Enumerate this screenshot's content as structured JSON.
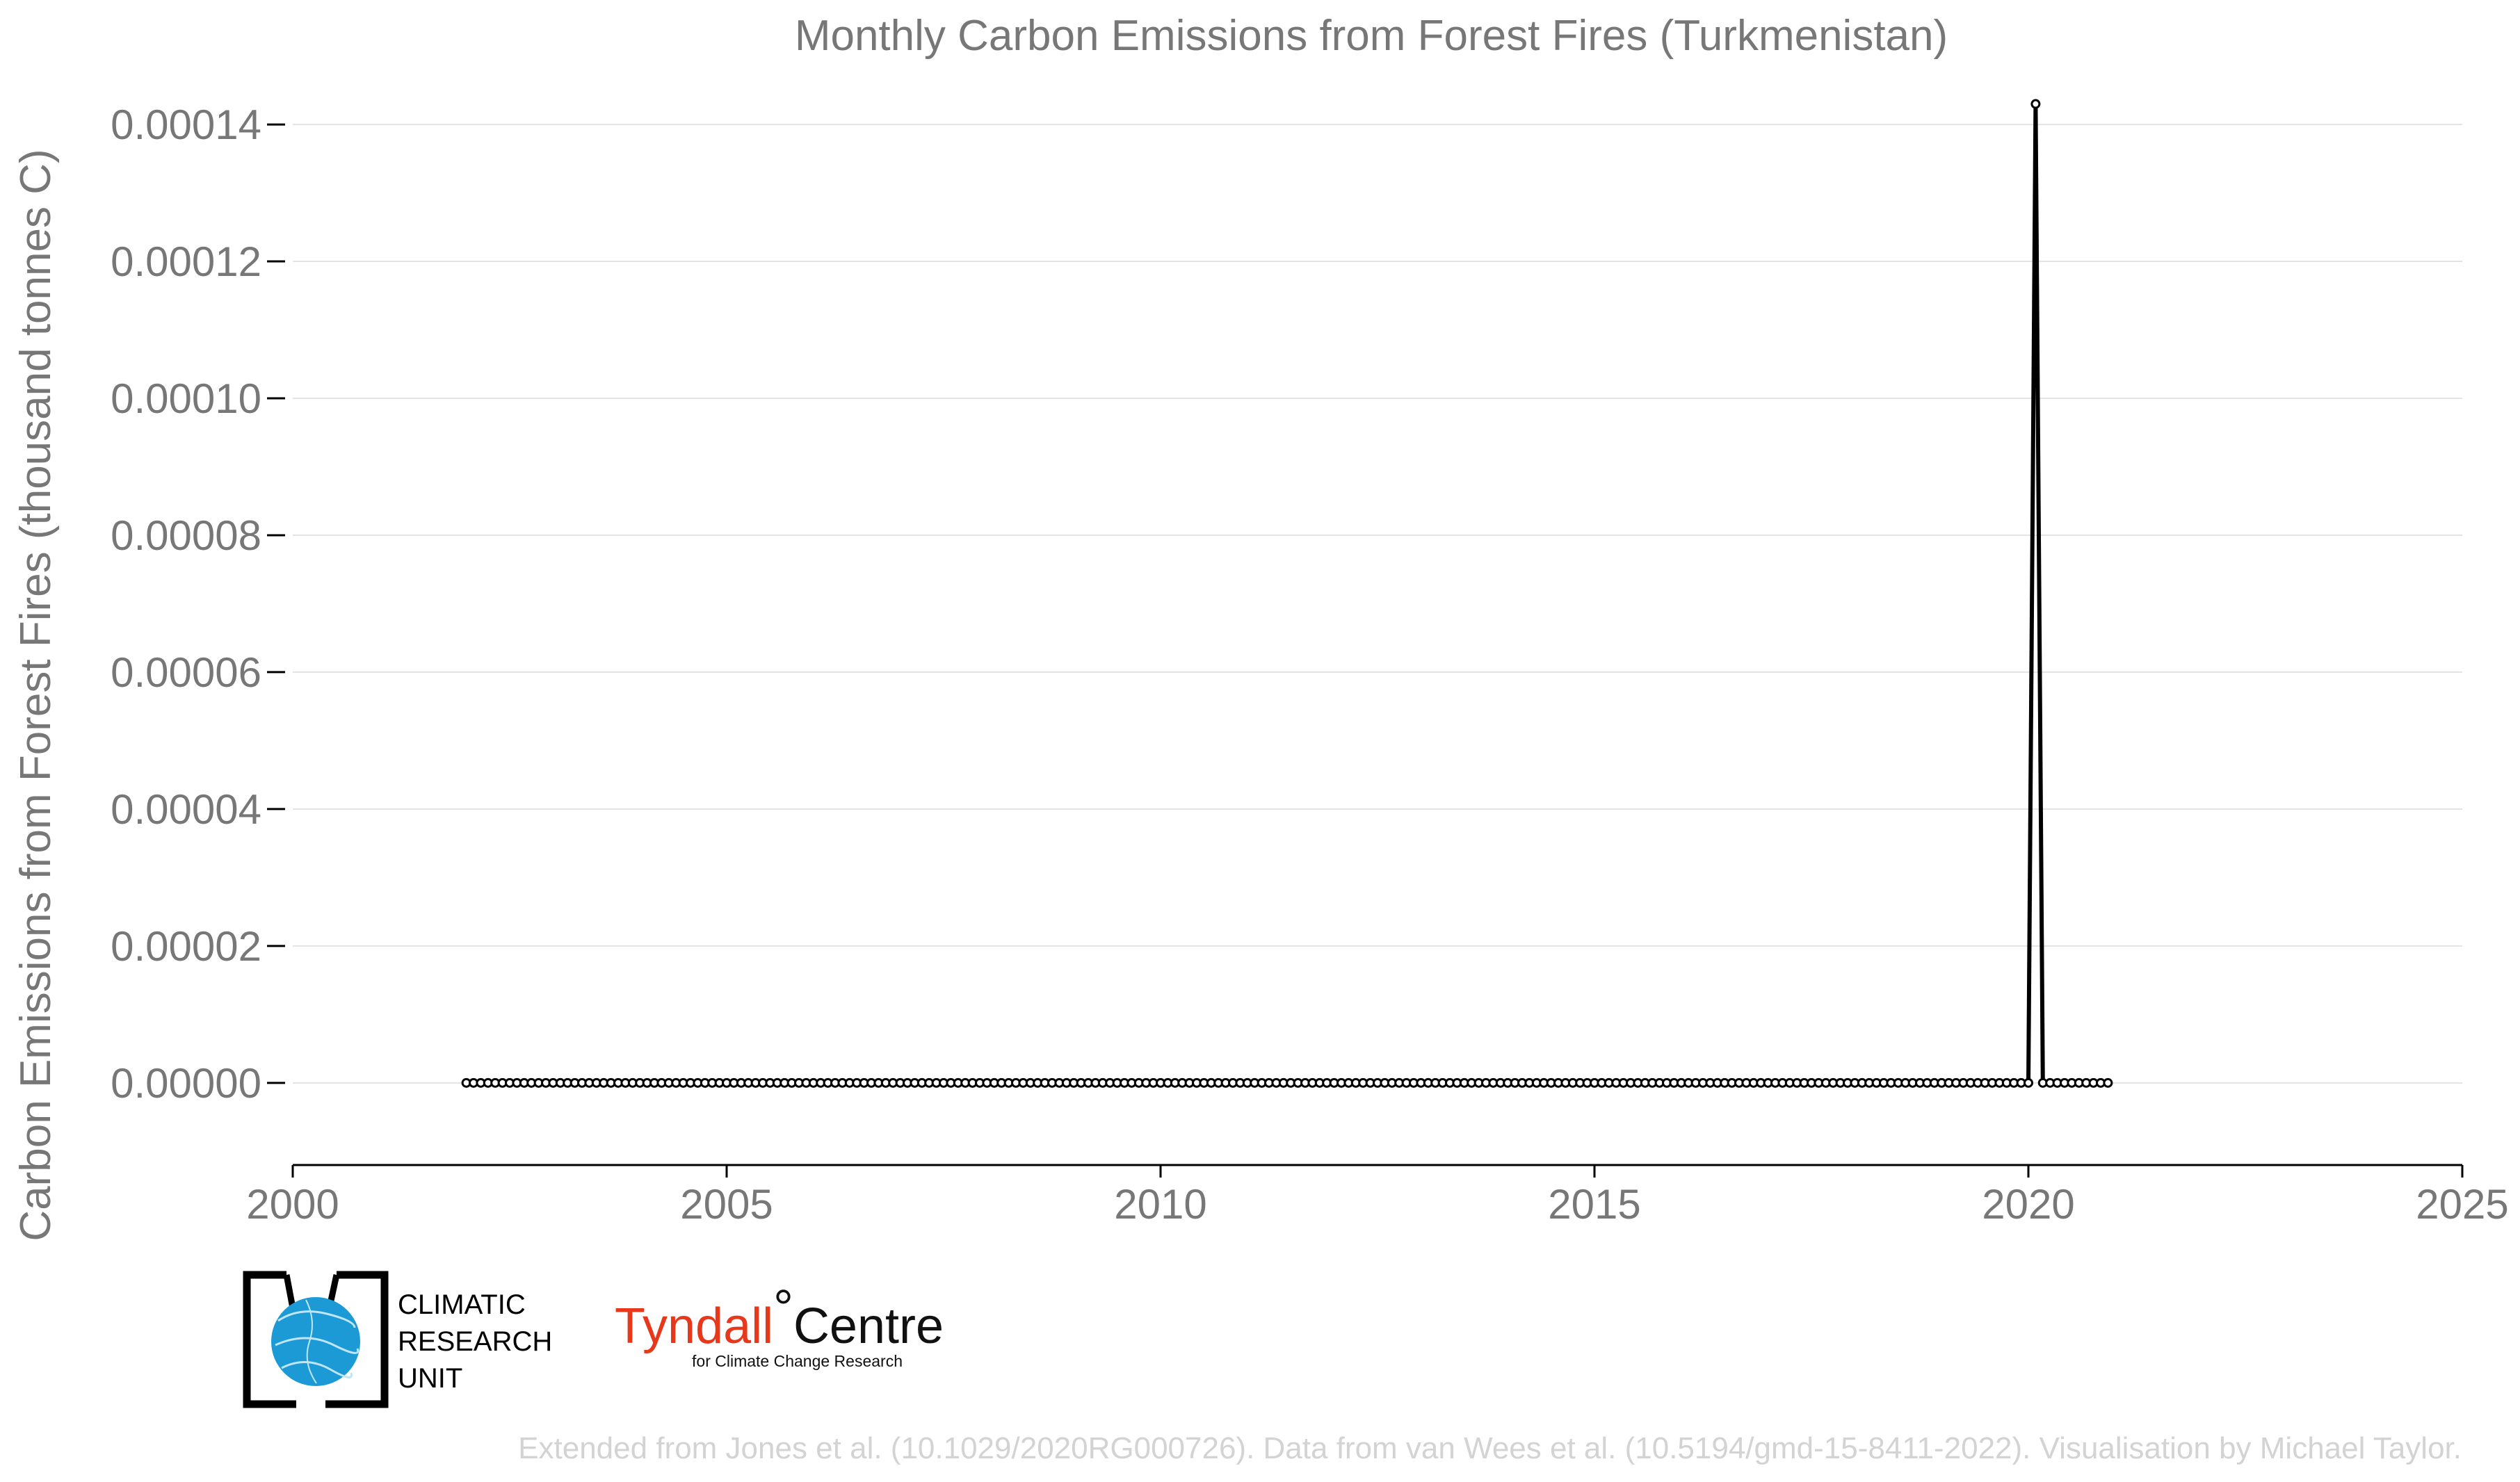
{
  "chart_data": {
    "type": "line",
    "title": "Monthly Carbon Emissions from Forest Fires (Turkmenistan)",
    "ylabel": "Carbon Emissions from Forest Fires (thousand tonnes C)",
    "xlabel": "",
    "xlim": [
      2000,
      2025
    ],
    "ylim": [
      -1.2e-05,
      0.000146
    ],
    "x_ticks": [
      "2000",
      "2005",
      "2010",
      "2015",
      "2020",
      "2025"
    ],
    "y_ticks": [
      "0.00000",
      "0.00002",
      "0.00004",
      "0.00006",
      "0.00008",
      "0.00010",
      "0.00012",
      "0.00014"
    ],
    "grid": "horizontal",
    "line_color": "#000000",
    "marker": "open circle",
    "series": [
      {
        "start": "2002-01",
        "end": "2020-12",
        "baseline_value": 0.0,
        "nonzero": [
          {
            "month": "2020-02",
            "value": 0.000143
          }
        ]
      }
    ]
  },
  "logos": {
    "cru": {
      "line1": "CLIMATIC",
      "line2": "RESEARCH",
      "line3": "UNIT",
      "globe_color": "#1b9ad6"
    },
    "tyndall": {
      "main": "Tyndall",
      "degree": "°",
      "centre": "Centre",
      "sub": "for Climate Change Research",
      "main_color": "#e8381c"
    }
  },
  "credit": "Extended from Jones et al. (10.1029/2020RG000726). Data from van Wees et al. (10.5194/gmd-15-8411-2022). Visualisation by Michael Taylor."
}
